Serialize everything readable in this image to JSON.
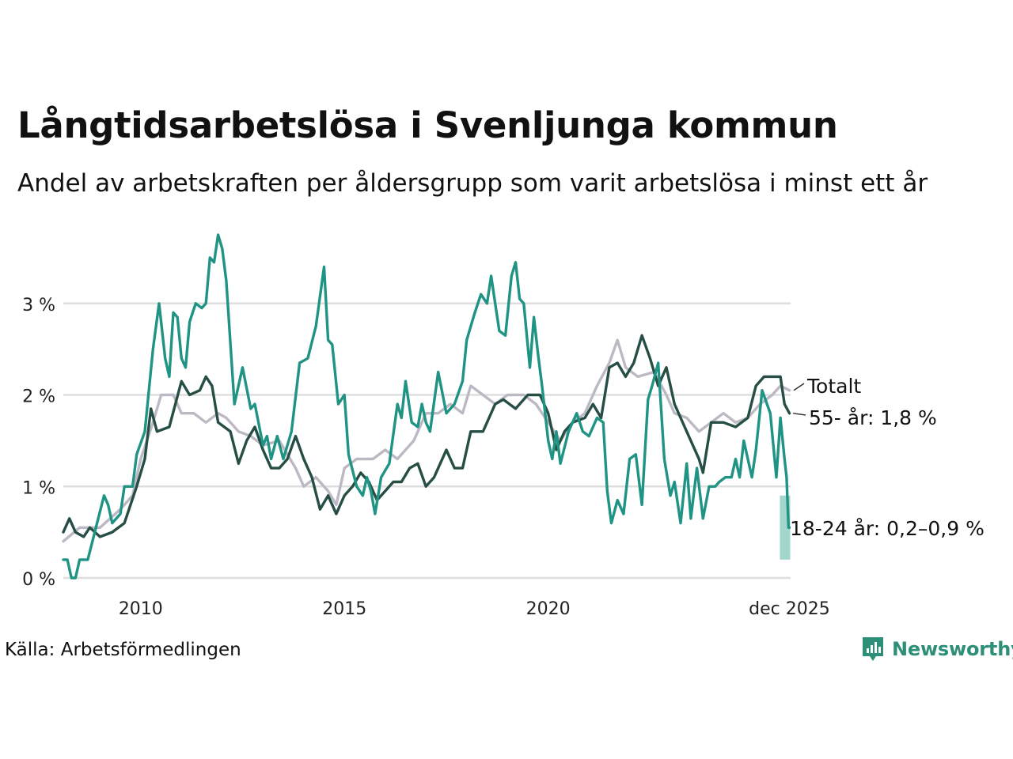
{
  "title": "Långtidsarbetslösa i Svenljunga kommun",
  "subtitle": "Andel av arbetskraften per åldersgrupp som varit arbetslösa i minst ett år",
  "source": "Källa: Arbetsförmedlingen",
  "brand": "Newsworthy",
  "colors": {
    "youth": "#1f9384",
    "youth_band": "#a2d6cd",
    "senior": "#264e45",
    "total": "#bdb9c4",
    "grid": "#dedede",
    "brand": "#2e8f79"
  },
  "chart_data": {
    "type": "line",
    "ylim": [
      0,
      3.75
    ],
    "yticks": [
      0,
      1,
      2,
      3
    ],
    "ytick_labels": [
      "0 %",
      "1 %",
      "2 %",
      "3 %"
    ],
    "xlim": [
      2008.1,
      2025.95
    ],
    "xticks": [
      2010,
      2015,
      2020,
      2025.92
    ],
    "xtick_labels": [
      "2010",
      "2015",
      "2020",
      "dec 2025"
    ],
    "series": [
      {
        "name": "Totalt",
        "label": "Totalt",
        "color": "#bdb9c4",
        "points": [
          [
            2008.1,
            0.4
          ],
          [
            2008.5,
            0.55
          ],
          [
            2009.0,
            0.55
          ],
          [
            2009.5,
            0.75
          ],
          [
            2009.8,
            0.9
          ],
          [
            2010.0,
            1.3
          ],
          [
            2010.3,
            1.7
          ],
          [
            2010.5,
            2.0
          ],
          [
            2010.8,
            2.0
          ],
          [
            2011.0,
            1.8
          ],
          [
            2011.3,
            1.8
          ],
          [
            2011.6,
            1.7
          ],
          [
            2011.9,
            1.8
          ],
          [
            2012.1,
            1.75
          ],
          [
            2012.4,
            1.6
          ],
          [
            2012.7,
            1.55
          ],
          [
            2013.0,
            1.45
          ],
          [
            2013.4,
            1.5
          ],
          [
            2013.8,
            1.2
          ],
          [
            2014.0,
            1.0
          ],
          [
            2014.3,
            1.1
          ],
          [
            2014.6,
            0.95
          ],
          [
            2014.8,
            0.8
          ],
          [
            2015.0,
            1.2
          ],
          [
            2015.3,
            1.3
          ],
          [
            2015.7,
            1.3
          ],
          [
            2016.0,
            1.4
          ],
          [
            2016.3,
            1.3
          ],
          [
            2016.7,
            1.5
          ],
          [
            2017.0,
            1.8
          ],
          [
            2017.3,
            1.8
          ],
          [
            2017.6,
            1.9
          ],
          [
            2017.9,
            1.8
          ],
          [
            2018.1,
            2.1
          ],
          [
            2018.4,
            2.0
          ],
          [
            2018.7,
            1.9
          ],
          [
            2019.0,
            2.0
          ],
          [
            2019.4,
            2.0
          ],
          [
            2019.7,
            1.9
          ],
          [
            2020.0,
            1.7
          ],
          [
            2020.3,
            1.5
          ],
          [
            2020.6,
            1.7
          ],
          [
            2020.9,
            1.8
          ],
          [
            2021.2,
            2.1
          ],
          [
            2021.5,
            2.35
          ],
          [
            2021.7,
            2.6
          ],
          [
            2021.9,
            2.3
          ],
          [
            2022.2,
            2.2
          ],
          [
            2022.6,
            2.25
          ],
          [
            2022.9,
            2.0
          ],
          [
            2023.1,
            1.8
          ],
          [
            2023.4,
            1.75
          ],
          [
            2023.7,
            1.6
          ],
          [
            2024.0,
            1.7
          ],
          [
            2024.3,
            1.8
          ],
          [
            2024.6,
            1.7
          ],
          [
            2024.9,
            1.75
          ],
          [
            2025.2,
            1.9
          ],
          [
            2025.5,
            2.0
          ],
          [
            2025.7,
            2.1
          ],
          [
            2025.92,
            2.05
          ]
        ]
      },
      {
        "name": "55- år",
        "label": "55- år: 1,8 %",
        "color": "#264e45",
        "points": [
          [
            2008.1,
            0.5
          ],
          [
            2008.25,
            0.65
          ],
          [
            2008.4,
            0.5
          ],
          [
            2008.6,
            0.45
          ],
          [
            2008.75,
            0.55
          ],
          [
            2009.0,
            0.45
          ],
          [
            2009.3,
            0.5
          ],
          [
            2009.6,
            0.6
          ],
          [
            2009.9,
            1.0
          ],
          [
            2010.1,
            1.3
          ],
          [
            2010.25,
            1.85
          ],
          [
            2010.4,
            1.6
          ],
          [
            2010.7,
            1.65
          ],
          [
            2011.0,
            2.15
          ],
          [
            2011.2,
            2.0
          ],
          [
            2011.45,
            2.05
          ],
          [
            2011.6,
            2.2
          ],
          [
            2011.75,
            2.1
          ],
          [
            2011.9,
            1.7
          ],
          [
            2012.2,
            1.6
          ],
          [
            2012.4,
            1.25
          ],
          [
            2012.6,
            1.5
          ],
          [
            2012.8,
            1.65
          ],
          [
            2013.0,
            1.4
          ],
          [
            2013.2,
            1.2
          ],
          [
            2013.4,
            1.2
          ],
          [
            2013.6,
            1.3
          ],
          [
            2013.8,
            1.55
          ],
          [
            2014.0,
            1.3
          ],
          [
            2014.2,
            1.1
          ],
          [
            2014.4,
            0.75
          ],
          [
            2014.6,
            0.9
          ],
          [
            2014.8,
            0.7
          ],
          [
            2015.0,
            0.9
          ],
          [
            2015.2,
            1.0
          ],
          [
            2015.4,
            1.15
          ],
          [
            2015.6,
            1.05
          ],
          [
            2015.8,
            0.85
          ],
          [
            2016.0,
            0.95
          ],
          [
            2016.2,
            1.05
          ],
          [
            2016.4,
            1.05
          ],
          [
            2016.6,
            1.2
          ],
          [
            2016.8,
            1.25
          ],
          [
            2017.0,
            1.0
          ],
          [
            2017.2,
            1.1
          ],
          [
            2017.5,
            1.4
          ],
          [
            2017.7,
            1.2
          ],
          [
            2017.9,
            1.2
          ],
          [
            2018.1,
            1.6
          ],
          [
            2018.4,
            1.6
          ],
          [
            2018.7,
            1.9
          ],
          [
            2018.9,
            1.95
          ],
          [
            2019.2,
            1.85
          ],
          [
            2019.5,
            2.0
          ],
          [
            2019.8,
            2.0
          ],
          [
            2020.0,
            1.8
          ],
          [
            2020.2,
            1.4
          ],
          [
            2020.4,
            1.6
          ],
          [
            2020.6,
            1.7
          ],
          [
            2020.9,
            1.75
          ],
          [
            2021.1,
            1.9
          ],
          [
            2021.3,
            1.75
          ],
          [
            2021.5,
            2.3
          ],
          [
            2021.7,
            2.35
          ],
          [
            2021.9,
            2.2
          ],
          [
            2022.1,
            2.35
          ],
          [
            2022.3,
            2.65
          ],
          [
            2022.5,
            2.4
          ],
          [
            2022.7,
            2.1
          ],
          [
            2022.9,
            2.3
          ],
          [
            2023.1,
            1.9
          ],
          [
            2023.3,
            1.7
          ],
          [
            2023.5,
            1.5
          ],
          [
            2023.7,
            1.3
          ],
          [
            2023.8,
            1.15
          ],
          [
            2024.0,
            1.7
          ],
          [
            2024.3,
            1.7
          ],
          [
            2024.6,
            1.65
          ],
          [
            2024.9,
            1.75
          ],
          [
            2025.1,
            2.1
          ],
          [
            2025.3,
            2.2
          ],
          [
            2025.5,
            2.2
          ],
          [
            2025.7,
            2.2
          ],
          [
            2025.8,
            1.9
          ],
          [
            2025.92,
            1.8
          ]
        ]
      },
      {
        "name": "18-24 år",
        "label": "18-24 år: 0,2–0,9 %",
        "color": "#1f9384",
        "range": [
          0.2,
          0.9
        ],
        "points": [
          [
            2008.1,
            0.2
          ],
          [
            2008.2,
            0.2
          ],
          [
            2008.3,
            0.0
          ],
          [
            2008.4,
            0.0
          ],
          [
            2008.5,
            0.2
          ],
          [
            2008.7,
            0.2
          ],
          [
            2008.9,
            0.55
          ],
          [
            2009.1,
            0.9
          ],
          [
            2009.2,
            0.8
          ],
          [
            2009.3,
            0.6
          ],
          [
            2009.5,
            0.7
          ],
          [
            2009.6,
            1.0
          ],
          [
            2009.8,
            1.0
          ],
          [
            2009.9,
            1.35
          ],
          [
            2010.1,
            1.6
          ],
          [
            2010.3,
            2.5
          ],
          [
            2010.45,
            3.0
          ],
          [
            2010.6,
            2.4
          ],
          [
            2010.7,
            2.2
          ],
          [
            2010.8,
            2.9
          ],
          [
            2010.9,
            2.85
          ],
          [
            2011.0,
            2.4
          ],
          [
            2011.1,
            2.3
          ],
          [
            2011.2,
            2.8
          ],
          [
            2011.35,
            3.0
          ],
          [
            2011.5,
            2.95
          ],
          [
            2011.6,
            3.0
          ],
          [
            2011.7,
            3.5
          ],
          [
            2011.8,
            3.45
          ],
          [
            2011.9,
            3.75
          ],
          [
            2012.0,
            3.6
          ],
          [
            2012.1,
            3.25
          ],
          [
            2012.3,
            1.9
          ],
          [
            2012.5,
            2.3
          ],
          [
            2012.7,
            1.85
          ],
          [
            2012.8,
            1.9
          ],
          [
            2013.0,
            1.45
          ],
          [
            2013.1,
            1.55
          ],
          [
            2013.2,
            1.3
          ],
          [
            2013.35,
            1.55
          ],
          [
            2013.5,
            1.3
          ],
          [
            2013.7,
            1.6
          ],
          [
            2013.9,
            2.35
          ],
          [
            2014.1,
            2.4
          ],
          [
            2014.3,
            2.75
          ],
          [
            2014.5,
            3.4
          ],
          [
            2014.6,
            2.6
          ],
          [
            2014.7,
            2.55
          ],
          [
            2014.85,
            1.9
          ],
          [
            2015.0,
            2.0
          ],
          [
            2015.1,
            1.35
          ],
          [
            2015.3,
            1.0
          ],
          [
            2015.45,
            0.9
          ],
          [
            2015.55,
            1.1
          ],
          [
            2015.65,
            0.95
          ],
          [
            2015.75,
            0.7
          ],
          [
            2015.9,
            1.1
          ],
          [
            2016.1,
            1.25
          ],
          [
            2016.3,
            1.9
          ],
          [
            2016.4,
            1.75
          ],
          [
            2016.5,
            2.15
          ],
          [
            2016.65,
            1.7
          ],
          [
            2016.8,
            1.65
          ],
          [
            2016.9,
            1.9
          ],
          [
            2017.0,
            1.7
          ],
          [
            2017.1,
            1.6
          ],
          [
            2017.3,
            2.25
          ],
          [
            2017.5,
            1.8
          ],
          [
            2017.7,
            1.9
          ],
          [
            2017.9,
            2.15
          ],
          [
            2018.0,
            2.6
          ],
          [
            2018.2,
            2.9
          ],
          [
            2018.35,
            3.1
          ],
          [
            2018.5,
            3.0
          ],
          [
            2018.6,
            3.3
          ],
          [
            2018.7,
            3.0
          ],
          [
            2018.8,
            2.7
          ],
          [
            2018.95,
            2.65
          ],
          [
            2019.1,
            3.3
          ],
          [
            2019.2,
            3.45
          ],
          [
            2019.3,
            3.05
          ],
          [
            2019.4,
            3.0
          ],
          [
            2019.55,
            2.3
          ],
          [
            2019.65,
            2.85
          ],
          [
            2019.75,
            2.45
          ],
          [
            2019.85,
            2.1
          ],
          [
            2020.0,
            1.5
          ],
          [
            2020.1,
            1.3
          ],
          [
            2020.2,
            1.6
          ],
          [
            2020.3,
            1.25
          ],
          [
            2020.5,
            1.6
          ],
          [
            2020.7,
            1.8
          ],
          [
            2020.85,
            1.6
          ],
          [
            2021.0,
            1.55
          ],
          [
            2021.2,
            1.75
          ],
          [
            2021.35,
            1.7
          ],
          [
            2021.45,
            0.95
          ],
          [
            2021.55,
            0.6
          ],
          [
            2021.7,
            0.85
          ],
          [
            2021.85,
            0.7
          ],
          [
            2022.0,
            1.3
          ],
          [
            2022.15,
            1.35
          ],
          [
            2022.3,
            0.8
          ],
          [
            2022.45,
            1.95
          ],
          [
            2022.55,
            2.1
          ],
          [
            2022.7,
            2.35
          ],
          [
            2022.85,
            1.3
          ],
          [
            2023.0,
            0.9
          ],
          [
            2023.1,
            1.05
          ],
          [
            2023.25,
            0.6
          ],
          [
            2023.4,
            1.25
          ],
          [
            2023.5,
            0.65
          ],
          [
            2023.65,
            1.2
          ],
          [
            2023.8,
            0.65
          ],
          [
            2023.95,
            1.0
          ],
          [
            2024.1,
            1.0
          ],
          [
            2024.2,
            1.05
          ],
          [
            2024.35,
            1.1
          ],
          [
            2024.5,
            1.1
          ],
          [
            2024.6,
            1.3
          ],
          [
            2024.7,
            1.1
          ],
          [
            2024.8,
            1.5
          ],
          [
            2025.0,
            1.1
          ],
          [
            2025.1,
            1.4
          ],
          [
            2025.25,
            2.05
          ],
          [
            2025.45,
            1.8
          ],
          [
            2025.6,
            1.1
          ],
          [
            2025.7,
            1.75
          ],
          [
            2025.8,
            1.3
          ],
          [
            2025.85,
            1.1
          ],
          [
            2025.9,
            0.55
          ],
          [
            2025.92,
            0.55
          ]
        ]
      }
    ]
  }
}
